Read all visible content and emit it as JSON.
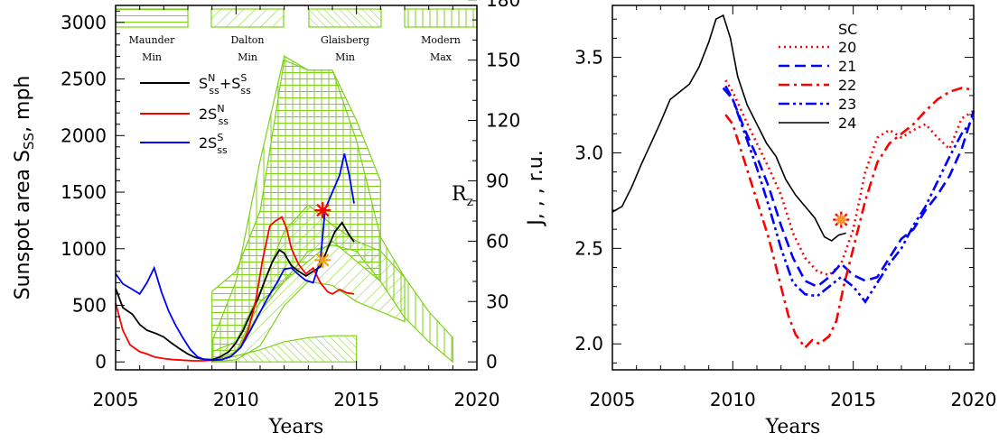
{
  "chart_data": [
    {
      "type": "line",
      "xlabel": "Years",
      "ylabel": "Sunspot area S",
      "ylabel_sub": "SS",
      "ylabel_unit": ", mph",
      "ylabel_right": "R",
      "ylabel_right_sub": "z",
      "xlim": [
        2005,
        2020
      ],
      "ylim": [
        0,
        3200
      ],
      "ylim_right": [
        0,
        180
      ],
      "xticks": [
        2005,
        2010,
        2015,
        2020
      ],
      "yticks": [
        0,
        500,
        1000,
        1500,
        2000,
        2500,
        3000
      ],
      "yticks_right": [
        0,
        30,
        60,
        90,
        120,
        150,
        180
      ],
      "legend_position": "top-center",
      "series": [
        {
          "name": "S_ss^N+S_ss^S",
          "legend_main": "S",
          "legend_sub1": "ss",
          "legend_sup1": "N",
          "legend_mid": "+S",
          "legend_sub2": "ss",
          "legend_sup2": "S",
          "color": "#000000",
          "x": [
            2005.0,
            2005.3,
            2005.7,
            2006.0,
            2006.3,
            2006.7,
            2007.0,
            2007.3,
            2007.7,
            2008.0,
            2008.3,
            2008.6,
            2009.0,
            2009.3,
            2009.7,
            2010.0,
            2010.3,
            2010.6,
            2010.9,
            2011.2,
            2011.5,
            2011.8,
            2012.0,
            2012.3,
            2012.6,
            2012.9,
            2013.2,
            2013.5,
            2013.8,
            2014.1,
            2014.4,
            2014.7,
            2014.9
          ],
          "y": [
            650,
            480,
            420,
            330,
            280,
            250,
            220,
            170,
            110,
            70,
            40,
            25,
            20,
            40,
            90,
            170,
            280,
            420,
            550,
            720,
            880,
            990,
            960,
            850,
            800,
            760,
            800,
            840,
            1000,
            1150,
            1230,
            1120,
            1060
          ]
        },
        {
          "name": "2S_ss^N",
          "legend_main": "2S",
          "legend_sub1": "ss",
          "legend_sup1": "N",
          "color": "#ff0000",
          "x": [
            2005.0,
            2005.3,
            2005.6,
            2006.0,
            2006.3,
            2006.6,
            2007.0,
            2007.4,
            2007.8,
            2008.2,
            2008.6,
            2009.0,
            2009.4,
            2009.8,
            2010.2,
            2010.5,
            2010.8,
            2011.1,
            2011.4,
            2011.6,
            2011.9,
            2012.1,
            2012.3,
            2012.6,
            2012.9,
            2013.2,
            2013.5,
            2013.8,
            2014.0,
            2014.3,
            2014.6,
            2014.9
          ],
          "y": [
            520,
            280,
            150,
            90,
            70,
            45,
            30,
            20,
            15,
            10,
            10,
            15,
            20,
            50,
            130,
            280,
            520,
            900,
            1200,
            1240,
            1280,
            1180,
            1000,
            860,
            780,
            830,
            700,
            620,
            600,
            640,
            610,
            600
          ]
        },
        {
          "name": "2S_ss^S",
          "legend_main": "2S",
          "legend_sub1": "ss",
          "legend_sup1": "S",
          "color": "#0000ff",
          "x": [
            2005.0,
            2005.3,
            2005.7,
            2006.0,
            2006.3,
            2006.6,
            2006.9,
            2007.2,
            2007.5,
            2007.8,
            2008.1,
            2008.4,
            2008.7,
            2009.0,
            2009.4,
            2009.8,
            2010.2,
            2010.6,
            2011.0,
            2011.3,
            2011.7,
            2012.0,
            2012.3,
            2012.6,
            2012.9,
            2013.2,
            2013.5,
            2013.7,
            2014.0,
            2014.3,
            2014.5,
            2014.7,
            2014.9
          ],
          "y": [
            780,
            690,
            640,
            600,
            700,
            830,
            620,
            450,
            320,
            210,
            110,
            45,
            20,
            15,
            20,
            50,
            130,
            280,
            440,
            560,
            700,
            820,
            830,
            770,
            720,
            700,
            900,
            1350,
            1500,
            1650,
            1840,
            1650,
            1400
          ]
        }
      ],
      "markers": [
        {
          "x": 2013.6,
          "y": 1340,
          "color": "#ff0000",
          "symbol": "asterisk"
        },
        {
          "x": 2013.6,
          "y": 900,
          "color": "#f0a020",
          "symbol": "asterisk"
        }
      ],
      "bands": [
        {
          "label": "Maunder Min",
          "label_lines": [
            "Maunder",
            "Min"
          ],
          "hatch": "horizontal",
          "upper": [
            [
              2009.0,
              35
            ],
            [
              2010.0,
              45
            ],
            [
              2011.0,
              75
            ],
            [
              2012.0,
              150
            ],
            [
              2013.0,
              145
            ],
            [
              2014.0,
              145
            ],
            [
              2015.0,
              120
            ],
            [
              2016.0,
              90
            ]
          ],
          "lower": [
            [
              2009.0,
              0
            ],
            [
              2010.0,
              5
            ],
            [
              2011.0,
              30
            ],
            [
              2012.0,
              40
            ],
            [
              2013.0,
              50
            ],
            [
              2014.0,
              60
            ],
            [
              2015.0,
              50
            ],
            [
              2016.0,
              40
            ]
          ]
        },
        {
          "label": "Dalton Min",
          "label_lines": [
            "Dalton",
            "Min"
          ],
          "hatch": "diagonal",
          "upper": [
            [
              2009.0,
              5
            ],
            [
              2010.0,
              10
            ],
            [
              2011.0,
              35
            ],
            [
              2012.0,
              65
            ],
            [
              2013.0,
              78
            ],
            [
              2014.0,
              68
            ],
            [
              2015.0,
              60
            ],
            [
              2016.0,
              55
            ],
            [
              2017.0,
              42
            ]
          ],
          "lower": [
            [
              2009.0,
              0
            ],
            [
              2010.0,
              1
            ],
            [
              2011.0,
              8
            ],
            [
              2012.0,
              28
            ],
            [
              2013.0,
              40
            ],
            [
              2014.0,
              38
            ],
            [
              2015.0,
              30
            ],
            [
              2016.0,
              25
            ],
            [
              2017.0,
              20
            ]
          ]
        },
        {
          "label": "Glaisberg Min",
          "label_lines": [
            "Glaisberg",
            "Min"
          ],
          "hatch": "diagonal-dense",
          "upper": [
            [
              2009.0,
              0
            ],
            [
              2010.0,
              3
            ],
            [
              2011.0,
              6
            ],
            [
              2012.0,
              10
            ],
            [
              2013.0,
              12
            ],
            [
              2014.0,
              13
            ],
            [
              2015.0,
              13
            ]
          ],
          "lower": [
            [
              2009.0,
              0
            ],
            [
              2010.0,
              0
            ],
            [
              2011.0,
              0
            ],
            [
              2012.0,
              0
            ],
            [
              2013.0,
              0
            ],
            [
              2014.0,
              0
            ],
            [
              2015.0,
              0
            ]
          ]
        },
        {
          "label": "Modern Max",
          "label_lines": [
            "Modern",
            "Max"
          ],
          "hatch": "vertical",
          "upper": [
            [
              2009.0,
              10
            ],
            [
              2010.0,
              40
            ],
            [
              2011.0,
              100
            ],
            [
              2012.0,
              152
            ],
            [
              2013.0,
              145
            ],
            [
              2014.0,
              145
            ],
            [
              2015.0,
              110
            ],
            [
              2016.0,
              62
            ],
            [
              2017.0,
              42
            ],
            [
              2018.0,
              25
            ],
            [
              2019.0,
              12
            ]
          ],
          "lower": [
            [
              2009.0,
              0
            ],
            [
              2010.0,
              5
            ],
            [
              2011.0,
              25
            ],
            [
              2012.0,
              40
            ],
            [
              2013.0,
              55
            ],
            [
              2014.0,
              58
            ],
            [
              2015.0,
              55
            ],
            [
              2016.0,
              40
            ],
            [
              2017.0,
              22
            ],
            [
              2018.0,
              10
            ],
            [
              2019.0,
              0
            ]
          ]
        }
      ]
    },
    {
      "type": "line",
      "xlabel": "Years",
      "ylabel": "J, , , r.u.",
      "xlim": [
        2005,
        2020
      ],
      "ylim": [
        1.8,
        3.8
      ],
      "xticks": [
        2005,
        2010,
        2015,
        2020
      ],
      "yticks": [
        2.0,
        2.5,
        3.0,
        3.5
      ],
      "legend_title": "SC",
      "legend_position": "top-center",
      "series": [
        {
          "name": "20",
          "color": "#ff0000",
          "dash": "dotted",
          "x": [
            2009.7,
            2010.0,
            2010.5,
            2011.0,
            2011.5,
            2012.0,
            2012.5,
            2013.0,
            2013.5,
            2014.0,
            2014.5,
            2015.0,
            2015.5,
            2016.0,
            2016.5,
            2017.0,
            2017.5,
            2018.0,
            2018.5,
            2019.0,
            2019.5,
            2020.0
          ],
          "y": [
            3.38,
            3.32,
            3.18,
            3.05,
            2.92,
            2.78,
            2.58,
            2.45,
            2.38,
            2.36,
            2.42,
            2.6,
            2.9,
            3.08,
            3.12,
            3.08,
            3.12,
            3.15,
            3.08,
            3.02,
            3.18,
            3.22
          ]
        },
        {
          "name": "21",
          "color": "#0000ff",
          "dash": "dashed",
          "x": [
            2009.7,
            2010.0,
            2010.5,
            2011.0,
            2011.5,
            2012.0,
            2012.5,
            2013.0,
            2013.5,
            2014.0,
            2014.5,
            2015.0,
            2015.5,
            2016.0,
            2016.5,
            2017.0,
            2017.5,
            2018.0,
            2018.5,
            2019.0,
            2019.5,
            2020.0
          ],
          "y": [
            3.35,
            3.28,
            3.12,
            2.98,
            2.82,
            2.62,
            2.45,
            2.33,
            2.3,
            2.35,
            2.42,
            2.36,
            2.33,
            2.35,
            2.45,
            2.55,
            2.6,
            2.7,
            2.78,
            2.88,
            3.02,
            3.22
          ]
        },
        {
          "name": "22",
          "color": "#ff0000",
          "dash": "dashdot",
          "x": [
            2009.7,
            2010.0,
            2010.5,
            2011.0,
            2011.5,
            2012.0,
            2012.3,
            2012.6,
            2013.0,
            2013.3,
            2013.6,
            2014.0,
            2014.3,
            2014.6,
            2015.0,
            2015.5,
            2016.0,
            2016.5,
            2017.0,
            2017.5,
            2018.0,
            2018.5,
            2019.0,
            2019.5,
            2020.0
          ],
          "y": [
            3.2,
            3.15,
            2.95,
            2.75,
            2.55,
            2.3,
            2.15,
            2.05,
            1.98,
            2.02,
            2.0,
            2.04,
            2.12,
            2.3,
            2.5,
            2.75,
            2.95,
            3.05,
            3.1,
            3.15,
            3.22,
            3.28,
            3.32,
            3.34,
            3.33
          ]
        },
        {
          "name": "23",
          "color": "#0000ff",
          "dash": "dashdotdot",
          "x": [
            2009.6,
            2010.0,
            2010.5,
            2011.0,
            2011.5,
            2012.0,
            2012.5,
            2013.0,
            2013.5,
            2014.0,
            2014.5,
            2015.0,
            2015.5,
            2016.0,
            2016.5,
            2017.0,
            2017.5,
            2018.0,
            2018.5,
            2019.0,
            2019.5,
            2020.0
          ],
          "y": [
            3.34,
            3.28,
            3.1,
            2.92,
            2.72,
            2.5,
            2.32,
            2.26,
            2.25,
            2.3,
            2.35,
            2.3,
            2.22,
            2.32,
            2.42,
            2.5,
            2.62,
            2.72,
            2.85,
            2.98,
            3.1,
            3.18
          ]
        },
        {
          "name": "24",
          "color": "#000000",
          "dash": "solid",
          "x": [
            2005.0,
            2005.4,
            2005.8,
            2006.2,
            2006.6,
            2007.0,
            2007.4,
            2007.8,
            2008.2,
            2008.6,
            2009.0,
            2009.3,
            2009.6,
            2009.9,
            2010.2,
            2010.6,
            2011.0,
            2011.4,
            2011.8,
            2012.2,
            2012.6,
            2013.0,
            2013.4,
            2013.8,
            2014.1,
            2014.4,
            2014.7
          ],
          "y": [
            2.69,
            2.72,
            2.82,
            2.94,
            3.05,
            3.16,
            3.28,
            3.32,
            3.36,
            3.45,
            3.58,
            3.7,
            3.72,
            3.6,
            3.4,
            3.25,
            3.15,
            3.05,
            2.98,
            2.86,
            2.78,
            2.72,
            2.66,
            2.56,
            2.54,
            2.57,
            2.58
          ]
        }
      ],
      "markers": [
        {
          "x": 2014.5,
          "y": 2.65,
          "color": "#ff0000",
          "symbol": "asterisk"
        },
        {
          "x": 2014.5,
          "y": 2.65,
          "color": "#f0a020",
          "symbol": "asterisk"
        }
      ]
    }
  ]
}
